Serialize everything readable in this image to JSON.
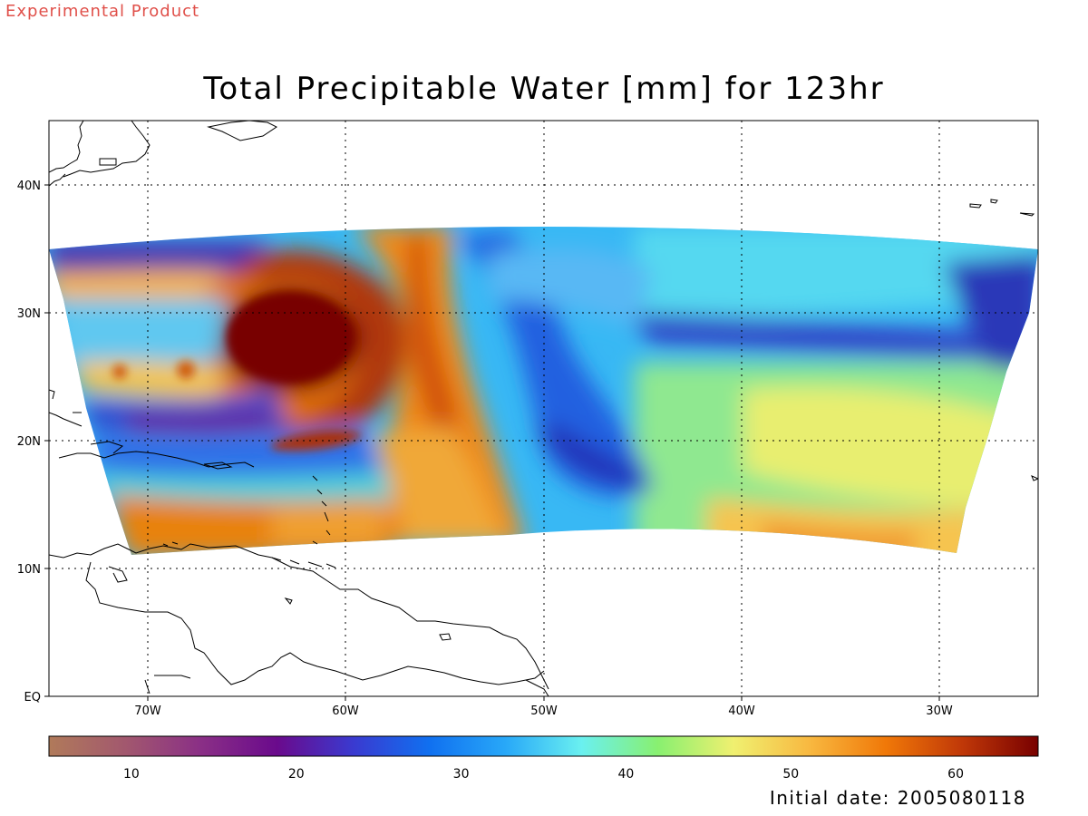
{
  "watermark": "Experimental Product",
  "title": "Total Precipitable Water [mm] for 123hr",
  "initial_date": "Initial date: 2005080118",
  "chart_data": {
    "type": "heatmap",
    "title": "Total Precipitable Water [mm] for 123hr",
    "variable": "Total Precipitable Water",
    "units": "mm",
    "forecast_hour": 123,
    "lon_range": [
      -75,
      -25
    ],
    "lat_range": [
      0,
      45
    ],
    "x_ticks": [
      "70W",
      "60W",
      "50W",
      "40W",
      "30W"
    ],
    "y_ticks": [
      "EQ",
      "10N",
      "20N",
      "30N",
      "40N"
    ],
    "grid": true,
    "colorbar": {
      "range": [
        5,
        65
      ],
      "ticks": [
        10,
        20,
        30,
        40,
        50,
        60
      ],
      "colors": [
        "#b07a5a",
        "#a2586e",
        "#8a2f86",
        "#6a0a8c",
        "#3a3ad0",
        "#1070f0",
        "#28a8f8",
        "#6af0f0",
        "#88f070",
        "#f0f070",
        "#f8b840",
        "#f07808",
        "#c03808",
        "#780000"
      ]
    },
    "features": {
      "vortex_center_lon_lat": [
        -62,
        28
      ],
      "dry_band_max_lon_lat": [
        -43,
        20
      ],
      "moist_band_axis_lon": -55
    }
  }
}
